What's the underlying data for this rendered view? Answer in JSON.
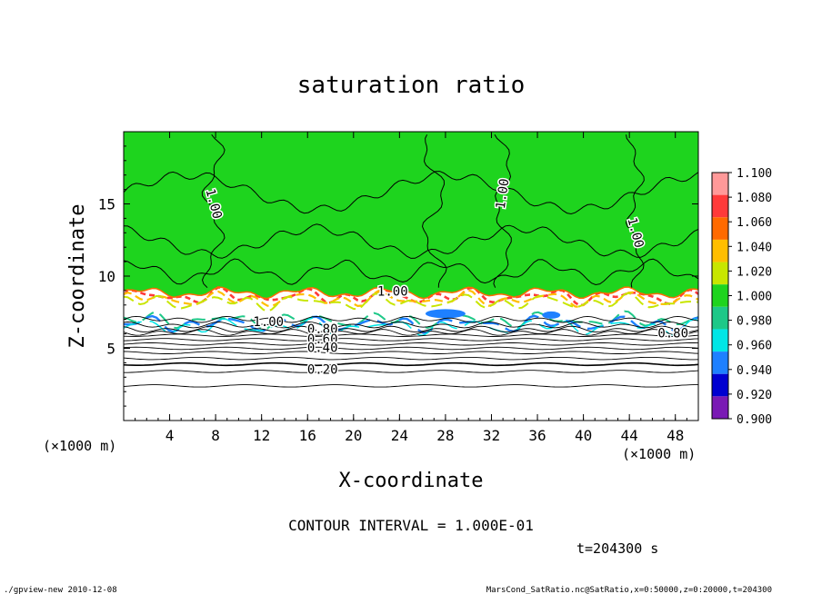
{
  "chart_data": {
    "type": "heatmap",
    "title": "saturation ratio",
    "xlabel": "X-coordinate",
    "ylabel": "Z-coordinate",
    "x_unit_left": "(×1000 m)",
    "x_unit_right": "(×1000 m)",
    "xlim": [
      0,
      50
    ],
    "ylim": [
      0,
      20
    ],
    "x_ticks": [
      "4",
      "8",
      "12",
      "16",
      "20",
      "24",
      "28",
      "32",
      "36",
      "40",
      "44",
      "48"
    ],
    "y_ticks": [
      "5",
      "10",
      "15"
    ],
    "colorbar": {
      "labels": [
        "1.100",
        "1.080",
        "1.060",
        "1.040",
        "1.020",
        "1.000",
        "0.980",
        "0.960",
        "0.940",
        "0.920",
        "0.900"
      ],
      "colors": [
        "#ff9999",
        "#ff3a3a",
        "#ff6a00",
        "#ffbe00",
        "#c8e600",
        "#1ed41e",
        "#1ec888",
        "#00e6e6",
        "#1e80ff",
        "#0000d0",
        "#7a1ab4"
      ]
    },
    "field_colors": {
      "saturated": "#1ed41e",
      "subsaturated": "#ffffff",
      "line": "#000000"
    },
    "contour_labels": [
      {
        "text": "1.00",
        "x": 7.8,
        "z": 15.0,
        "rot": 75
      },
      {
        "text": "1.00",
        "x": 33.0,
        "z": 15.7,
        "rot": -82
      },
      {
        "text": "1.00",
        "x": 44.5,
        "z": 13.0,
        "rot": 75
      },
      {
        "text": "1.00",
        "x": 23.4,
        "z": 8.9,
        "rot": 0
      },
      {
        "text": "1.00",
        "x": 12.6,
        "z": 6.8,
        "rot": 0
      },
      {
        "text": "0.80",
        "x": 17.3,
        "z": 6.3,
        "rot": 0
      },
      {
        "text": "0.60",
        "x": 17.3,
        "z": 5.6,
        "rot": 0
      },
      {
        "text": "0.40",
        "x": 17.3,
        "z": 5.0,
        "rot": 0
      },
      {
        "text": "0.20",
        "x": 17.3,
        "z": 3.5,
        "rot": 0
      },
      {
        "text": "0.80",
        "x": 47.8,
        "z": 6.0,
        "rot": 0
      }
    ],
    "contour_interval": "CONTOUR INTERVAL = 1.000E-01",
    "time_label": "t=204300 s"
  },
  "footer": {
    "left": "./gpview-new   2010-12-08",
    "right": "MarsCond_SatRatio.nc@SatRatio,x=0:50000,z=0:20000,t=204300"
  }
}
